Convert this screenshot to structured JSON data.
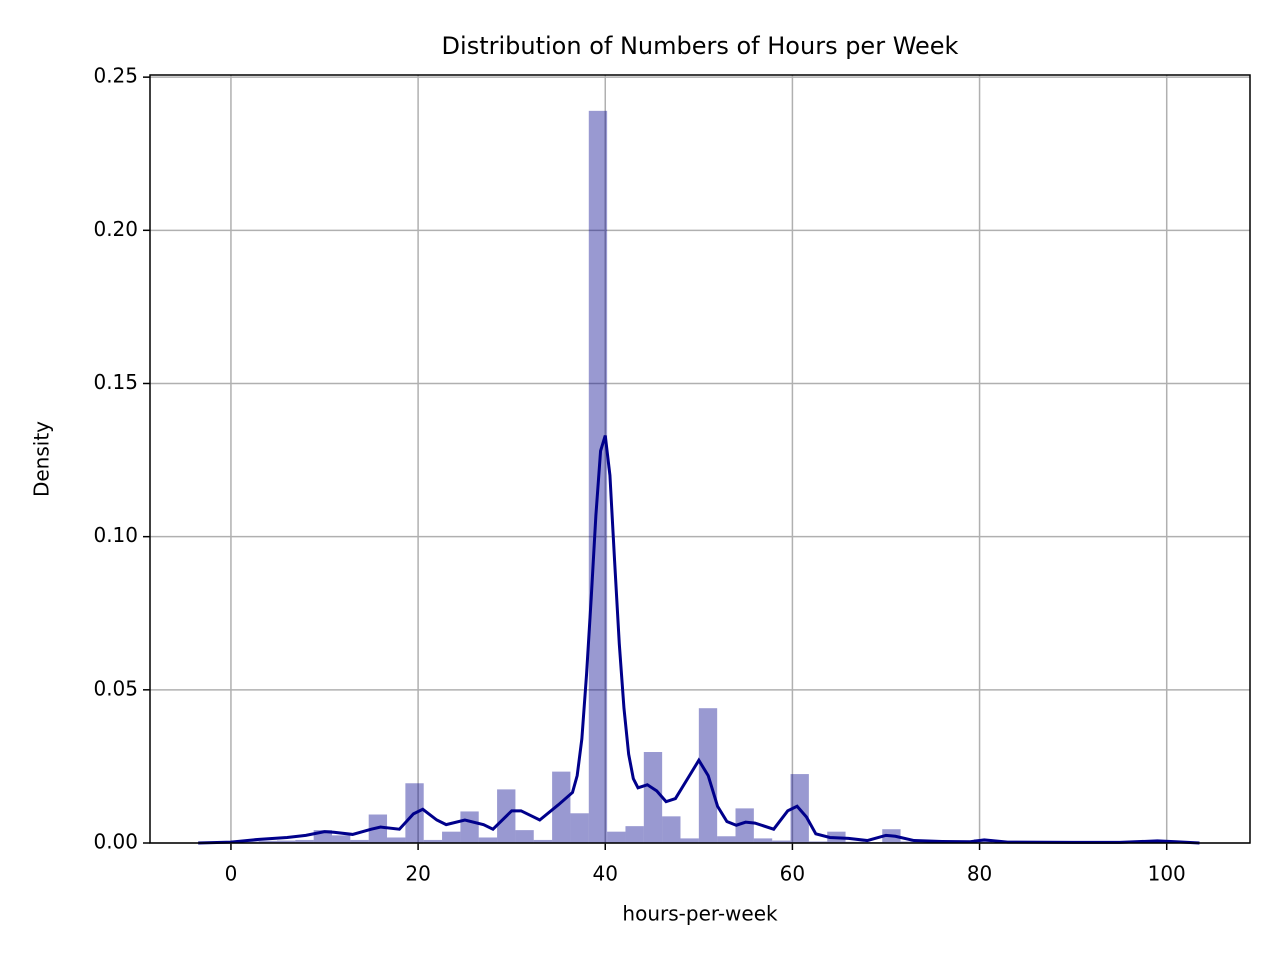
{
  "chart_data": {
    "type": "histogram",
    "title": "Distribution of Numbers of Hours per Week",
    "xlabel": "hours-per-week",
    "ylabel": "Density",
    "bins": [
      1,
      2.96,
      4.92,
      6.88,
      8.84,
      10.8,
      12.76,
      14.72,
      16.68,
      18.64,
      20.6,
      22.56,
      24.52,
      26.48,
      28.44,
      30.4,
      32.36,
      34.32,
      36.28,
      38.24,
      40.2,
      42.16,
      44.12,
      46.08,
      48.04,
      50,
      51.96,
      53.92,
      55.88,
      57.84,
      59.8,
      61.76,
      63.72,
      65.68,
      67.64,
      69.6,
      71.56,
      73.52,
      75.48,
      77.44,
      79.4,
      81.36,
      83.32,
      85.28,
      87.24,
      89.2,
      91.16,
      93.12,
      95.08,
      97.04,
      99
    ],
    "values": [
      0.0005,
      0.0007,
      0.0008,
      0.001,
      0.0042,
      0.0025,
      0.001,
      0.0093,
      0.0018,
      0.0195,
      0.001,
      0.0037,
      0.0103,
      0.0018,
      0.0175,
      0.0042,
      0.001,
      0.0233,
      0.0097,
      0.239,
      0.0037,
      0.0055,
      0.0297,
      0.0087,
      0.0015,
      0.044,
      0.0022,
      0.0113,
      0.0015,
      0.0008,
      0.0225,
      0.0005,
      0.0037,
      0.0004,
      0.0003,
      0.0045,
      0.0005,
      0.0003,
      0.0002,
      0.0002,
      0.0012,
      0.0002,
      0.0002,
      0.0001,
      0.0001,
      0.0002,
      0.0001,
      0.0001,
      0.0002,
      0.0008
    ],
    "color": "#00008b",
    "bar_alpha": 0.4,
    "kde": {
      "color": "#00008b",
      "x": [
        -3.5,
        0,
        3,
        6,
        8,
        10,
        11,
        13,
        15,
        16,
        18,
        19.5,
        20.5,
        22,
        23,
        25,
        27,
        28,
        30,
        31,
        33,
        35,
        36.5,
        37,
        37.5,
        38,
        38.5,
        39,
        39.5,
        40,
        40.5,
        41,
        41.5,
        42,
        42.5,
        43,
        43.5,
        44.5,
        45.5,
        46.5,
        47.5,
        49,
        50,
        51,
        52,
        53,
        54,
        55,
        56,
        58,
        59.5,
        60.5,
        61.5,
        62.5,
        64,
        66,
        68,
        70,
        71,
        73,
        76,
        79,
        80.5,
        83,
        90,
        95,
        99,
        101,
        103.5
      ],
      "values": [
        0,
        0.0003,
        0.0012,
        0.0018,
        0.0025,
        0.0037,
        0.0035,
        0.0028,
        0.0045,
        0.0052,
        0.0045,
        0.0095,
        0.011,
        0.0075,
        0.006,
        0.0075,
        0.006,
        0.0045,
        0.0105,
        0.0105,
        0.0075,
        0.0125,
        0.0165,
        0.022,
        0.034,
        0.055,
        0.08,
        0.107,
        0.128,
        0.133,
        0.12,
        0.092,
        0.065,
        0.044,
        0.029,
        0.021,
        0.018,
        0.019,
        0.017,
        0.0135,
        0.0145,
        0.022,
        0.027,
        0.022,
        0.012,
        0.007,
        0.0058,
        0.0068,
        0.0065,
        0.0045,
        0.0105,
        0.012,
        0.0085,
        0.003,
        0.0018,
        0.0015,
        0.0008,
        0.0025,
        0.0022,
        0.0008,
        0.0005,
        0.0004,
        0.001,
        0.0003,
        0.0002,
        0.0002,
        0.0007,
        0.0004,
        0
      ]
    },
    "xlim": [
      -8.65,
      108.9
    ],
    "ylim": [
      0,
      0.2507
    ],
    "xticks": [
      0,
      20,
      40,
      60,
      80,
      100
    ],
    "yticks": [
      {
        "value": 0,
        "label": "0.00"
      },
      {
        "value": 0.05,
        "label": "0.05"
      },
      {
        "value": 0.1,
        "label": "0.10"
      },
      {
        "value": 0.15,
        "label": "0.15"
      },
      {
        "value": 0.2,
        "label": "0.20"
      },
      {
        "value": 0.25,
        "label": "0.25"
      }
    ],
    "grid": true
  }
}
